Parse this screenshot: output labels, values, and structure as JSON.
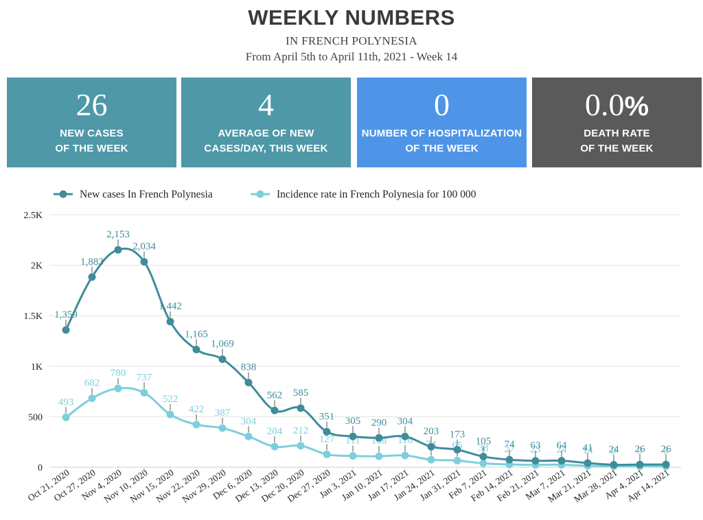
{
  "header": {
    "title": "WEEKLY NUMBERS",
    "subtitle": "IN FRENCH POLYNESIA",
    "date_range": "From April 5th to April 11th, 2021 - Week 14"
  },
  "stats": [
    {
      "value": "26",
      "label_line1": "NEW CASES",
      "label_line2": "OF THE WEEK",
      "color": "#4e98a8"
    },
    {
      "value": "4",
      "label_line1": "AVERAGE OF NEW",
      "label_line2": "CASES/DAY, THIS WEEK",
      "color": "#4e98a8"
    },
    {
      "value": "0",
      "label_line1": "NUMBER OF HOSPITALIZATION",
      "label_line2": "OF THE WEEK",
      "color": "#4e95e8"
    },
    {
      "value": "0.0",
      "value_suffix": "%",
      "label_line1": "DEATH RATE",
      "label_line2": "OF THE WEEK",
      "color": "#5a5a5a"
    }
  ],
  "chart_data": {
    "type": "line",
    "categories": [
      "Oct 21, 2020",
      "Oct 27, 2020",
      "Nov 4, 2020",
      "Nov 10, 2020",
      "Nov 15, 2020",
      "Nov 22, 2020",
      "Nov 29, 2020",
      "Dec 6, 2020",
      "Dec 13, 2020",
      "Dec 20, 2020",
      "Dec 27, 2020",
      "Jan 3, 2021",
      "Jan 10, 2021",
      "Jan 17, 2021",
      "Jan 24, 2021",
      "Jan 31, 2021",
      "Feb 7, 2021",
      "Feb 14, 2021",
      "Feb 21, 2021",
      "Mar 7, 2021",
      "Mar 21, 2021",
      "Mar 28, 2021",
      "Apr 4, 2021",
      "Apr 14, 2021"
    ],
    "series": [
      {
        "name": "New cases In French Polynesia",
        "color": "#3f8c9b",
        "values": [
          1359,
          1883,
          2153,
          2034,
          1442,
          1165,
          1069,
          838,
          562,
          585,
          351,
          305,
          290,
          304,
          203,
          173,
          105,
          74,
          63,
          64,
          41,
          24,
          26,
          26
        ],
        "labels": [
          "1,359",
          "1,883",
          "2,153",
          "2,034",
          "1,442",
          "1,165",
          "1,069",
          "838",
          "562",
          "585",
          "351",
          "305",
          "290",
          "304",
          "203",
          "173",
          "105",
          "74",
          "63",
          "64",
          "41",
          "24",
          "26",
          "26"
        ]
      },
      {
        "name": "Incidence rate in French Polynesia for 100 000",
        "color": "#7ccfdc",
        "values": [
          493,
          682,
          780,
          737,
          522,
          422,
          387,
          304,
          204,
          212,
          127,
          111,
          108,
          116,
          74,
          65,
          38,
          27,
          23,
          24,
          14,
          9,
          9,
          9
        ],
        "labels": [
          "493",
          "682",
          "780",
          "737",
          "522",
          "422",
          "387",
          "304",
          "204",
          "212",
          "127",
          "111",
          "108",
          "116",
          "74",
          "65",
          "38",
          "27",
          "23",
          "24",
          "14",
          "9",
          "9",
          "9"
        ]
      }
    ],
    "y_ticks": [
      0,
      500,
      1000,
      1500,
      2000,
      2500
    ],
    "y_tick_labels": [
      "0",
      "500",
      "1K",
      "1.5K",
      "2K",
      "2.5K"
    ],
    "ylim": [
      0,
      2500
    ],
    "grid": true,
    "legend": "top-left"
  }
}
